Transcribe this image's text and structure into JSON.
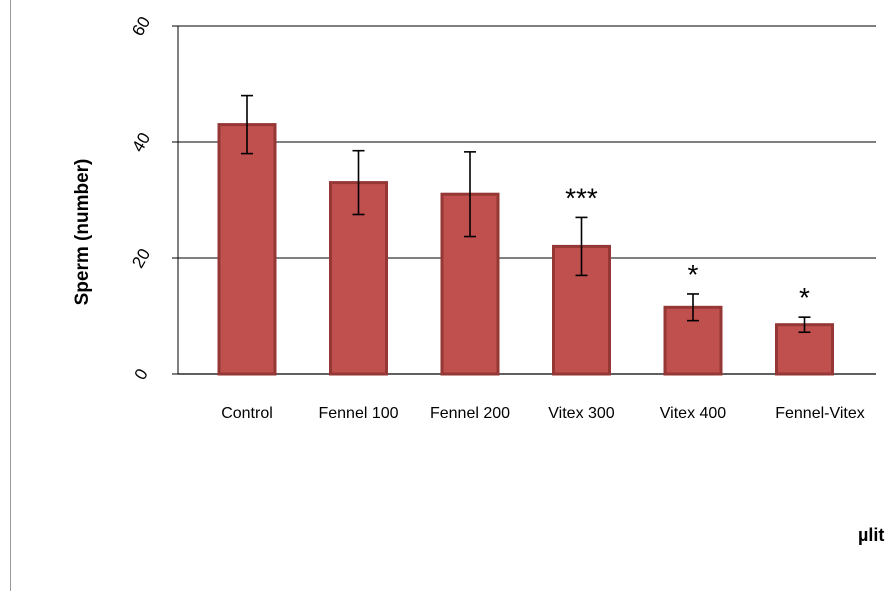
{
  "chart_data": {
    "type": "bar",
    "title": "",
    "xlabel": "µlit",
    "ylabel": "Sperm (number)",
    "ylim": [
      0,
      60
    ],
    "yticks": [
      "0",
      "20",
      "40",
      "60"
    ],
    "grid": true,
    "categories": [
      "Control",
      "Fennel 100",
      "Fennel 200",
      "Vitex 300",
      "Vitex 400",
      "Fennel-Vitex"
    ],
    "values": [
      43,
      33,
      31,
      22,
      11.5,
      8.5
    ],
    "errors": [
      5,
      5.5,
      7.3,
      5,
      2.3,
      1.3
    ],
    "annotations": [
      "",
      "",
      "",
      "***",
      "*",
      "*"
    ],
    "colors": {
      "bar_fill": "#c0504d",
      "bar_edge": "#953735",
      "error_bar": "#000000",
      "grid": "#000000"
    }
  }
}
